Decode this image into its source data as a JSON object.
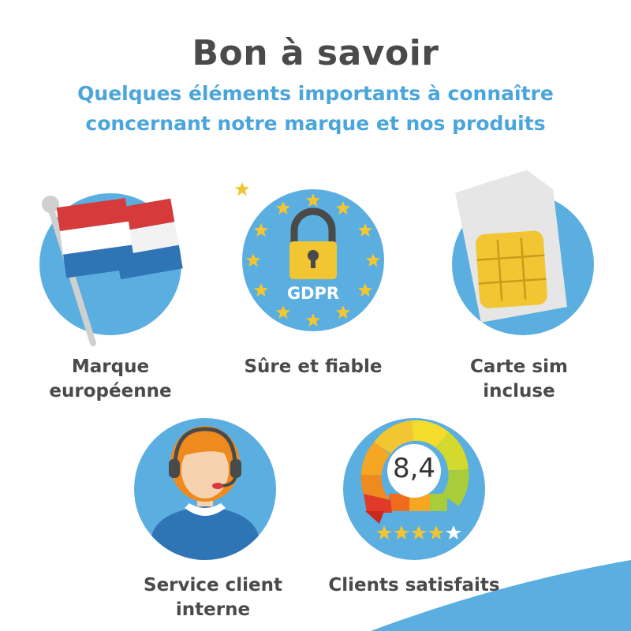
{
  "header": {
    "title": "Bon à savoir",
    "subtitle_line1": "Quelques éléments importants à connaître",
    "subtitle_line2": "concernant notre marque et nos produits"
  },
  "features": [
    {
      "icon": "flag-icon",
      "label_line1": "Marque",
      "label_line2": "européenne"
    },
    {
      "icon": "gdpr-lock-icon",
      "badge": "GDPR",
      "label_line1": "Sûre et fiable"
    },
    {
      "icon": "sim-card-icon",
      "label_line1": "Carte sim",
      "label_line2": "incluse"
    },
    {
      "icon": "customer-service-agent-icon",
      "label_line1": "Service client",
      "label_line2": "interne"
    },
    {
      "icon": "rating-gauge-icon",
      "score": "8,4",
      "stars": 4,
      "stars_max": 5,
      "label_line1": "Clients satisfaits"
    }
  ],
  "colors": {
    "circle": "#5aaee0",
    "accent_text": "#4aa5db",
    "title_text": "#4a4a4a",
    "flag_red": "#d63a3a",
    "flag_blue": "#2f74b5",
    "gold": "#f2c532"
  }
}
